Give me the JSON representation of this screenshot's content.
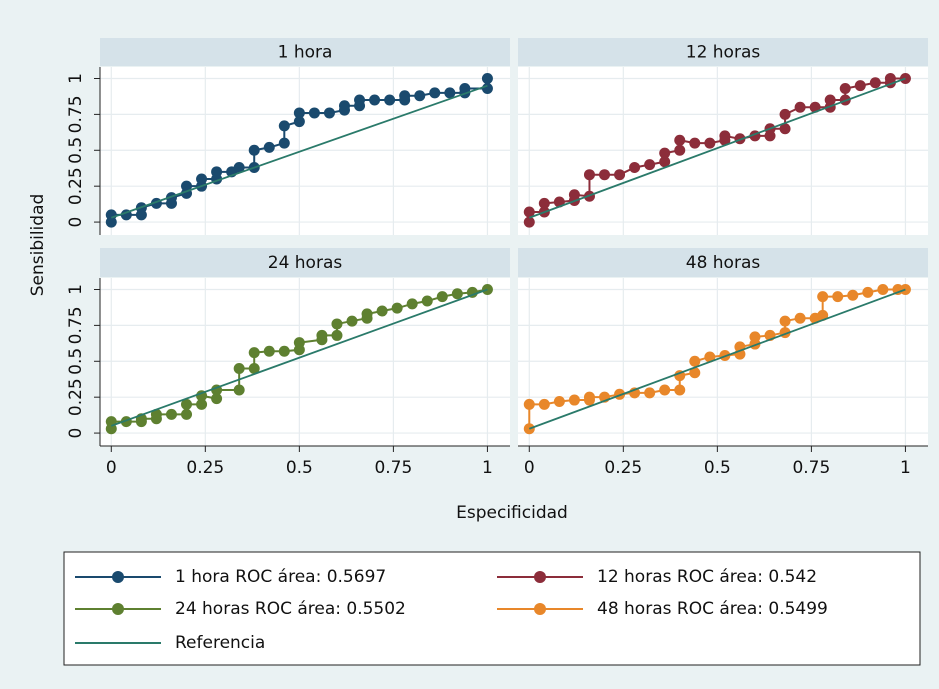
{
  "xlabel": "Especificidad",
  "ylabel": "Sensibilidad",
  "reference_legend": {
    "name": "Referencia",
    "color": "#2a7a6a"
  },
  "chart_data": [
    {
      "type": "line",
      "title": "1 hora",
      "xlim": [
        -0.03,
        1.06
      ],
      "ylim": [
        -0.09,
        1.08
      ],
      "xticks": [
        0,
        0.25,
        0.5,
        0.75,
        1
      ],
      "yticks": [
        0,
        0.25,
        0.5,
        0.75,
        1
      ],
      "grid": true,
      "x": [
        0,
        0,
        0.04,
        0.08,
        0.08,
        0.12,
        0.16,
        0.16,
        0.2,
        0.2,
        0.24,
        0.24,
        0.28,
        0.28,
        0.32,
        0.34,
        0.38,
        0.38,
        0.42,
        0.46,
        0.46,
        0.5,
        0.5,
        0.54,
        0.58,
        0.62,
        0.62,
        0.66,
        0.66,
        0.7,
        0.74,
        0.78,
        0.78,
        0.82,
        0.86,
        0.9,
        0.94,
        0.94,
        1,
        1
      ],
      "series": [
        {
          "name": "1 hora ROC área: 0.5697",
          "color": "#1a4a6e",
          "values": [
            0,
            0.05,
            0.05,
            0.05,
            0.1,
            0.13,
            0.13,
            0.17,
            0.2,
            0.25,
            0.25,
            0.3,
            0.3,
            0.35,
            0.35,
            0.38,
            0.38,
            0.5,
            0.52,
            0.55,
            0.67,
            0.7,
            0.76,
            0.76,
            0.76,
            0.78,
            0.81,
            0.81,
            0.85,
            0.85,
            0.85,
            0.85,
            0.88,
            0.88,
            0.9,
            0.9,
            0.9,
            0.93,
            0.93,
            1
          ]
        }
      ],
      "reference": {
        "x": [
          0,
          1
        ],
        "values": [
          0.03,
          0.95
        ]
      }
    },
    {
      "type": "line",
      "title": "12 horas",
      "xlim": [
        -0.03,
        1.06
      ],
      "ylim": [
        -0.09,
        1.08
      ],
      "xticks": [
        0,
        0.25,
        0.5,
        0.75,
        1
      ],
      "yticks": [
        0,
        0.25,
        0.5,
        0.75,
        1
      ],
      "grid": true,
      "x": [
        0,
        0,
        0.04,
        0.04,
        0.08,
        0.12,
        0.12,
        0.16,
        0.16,
        0.2,
        0.24,
        0.28,
        0.32,
        0.36,
        0.36,
        0.4,
        0.4,
        0.44,
        0.48,
        0.52,
        0.52,
        0.56,
        0.6,
        0.64,
        0.64,
        0.68,
        0.68,
        0.72,
        0.76,
        0.8,
        0.8,
        0.84,
        0.84,
        0.88,
        0.92,
        0.96,
        0.96,
        1
      ],
      "series": [
        {
          "name": "12 horas ROC área: 0.542",
          "color": "#8c2d3a",
          "values": [
            0,
            0.07,
            0.07,
            0.13,
            0.14,
            0.15,
            0.19,
            0.18,
            0.33,
            0.33,
            0.33,
            0.38,
            0.4,
            0.42,
            0.48,
            0.5,
            0.57,
            0.55,
            0.55,
            0.57,
            0.6,
            0.58,
            0.6,
            0.6,
            0.65,
            0.65,
            0.75,
            0.8,
            0.8,
            0.8,
            0.85,
            0.85,
            0.93,
            0.95,
            0.97,
            0.97,
            1,
            1
          ]
        }
      ],
      "reference": {
        "x": [
          0,
          1
        ],
        "values": [
          0.03,
          1
        ]
      }
    },
    {
      "type": "line",
      "title": "24 horas",
      "xlim": [
        -0.03,
        1.06
      ],
      "ylim": [
        -0.09,
        1.08
      ],
      "xticks": [
        0,
        0.25,
        0.5,
        0.75,
        1
      ],
      "yticks": [
        0,
        0.25,
        0.5,
        0.75,
        1
      ],
      "grid": true,
      "x": [
        0,
        0,
        0.04,
        0.08,
        0.08,
        0.12,
        0.12,
        0.16,
        0.2,
        0.2,
        0.24,
        0.24,
        0.28,
        0.28,
        0.34,
        0.34,
        0.38,
        0.38,
        0.42,
        0.46,
        0.5,
        0.5,
        0.56,
        0.56,
        0.6,
        0.6,
        0.64,
        0.68,
        0.68,
        0.72,
        0.76,
        0.8,
        0.84,
        0.88,
        0.92,
        0.96,
        1
      ],
      "series": [
        {
          "name": "24 horas ROC área: 0.5502",
          "color": "#5e8030",
          "values": [
            0.03,
            0.08,
            0.08,
            0.08,
            0.1,
            0.1,
            0.13,
            0.13,
            0.13,
            0.2,
            0.2,
            0.26,
            0.24,
            0.3,
            0.3,
            0.45,
            0.45,
            0.56,
            0.57,
            0.57,
            0.58,
            0.63,
            0.65,
            0.68,
            0.68,
            0.76,
            0.78,
            0.8,
            0.83,
            0.85,
            0.87,
            0.9,
            0.92,
            0.95,
            0.97,
            0.98,
            1
          ]
        }
      ],
      "reference": {
        "x": [
          0,
          1
        ],
        "values": [
          0.05,
          1
        ]
      }
    },
    {
      "type": "line",
      "title": "48 horas",
      "xlim": [
        -0.03,
        1.06
      ],
      "ylim": [
        -0.09,
        1.08
      ],
      "xticks": [
        0,
        0.25,
        0.5,
        0.75,
        1
      ],
      "yticks": [
        0,
        0.25,
        0.5,
        0.75,
        1
      ],
      "grid": true,
      "x": [
        0,
        0,
        0.04,
        0.08,
        0.12,
        0.16,
        0.16,
        0.2,
        0.24,
        0.28,
        0.32,
        0.36,
        0.4,
        0.4,
        0.44,
        0.44,
        0.48,
        0.52,
        0.56,
        0.56,
        0.6,
        0.6,
        0.64,
        0.68,
        0.68,
        0.72,
        0.76,
        0.78,
        0.78,
        0.82,
        0.86,
        0.9,
        0.94,
        0.98,
        1
      ],
      "series": [
        {
          "name": "48 horas ROC área: 0.5499",
          "color": "#e8872a",
          "values": [
            0.03,
            0.2,
            0.2,
            0.22,
            0.23,
            0.23,
            0.25,
            0.25,
            0.27,
            0.28,
            0.28,
            0.3,
            0.3,
            0.4,
            0.42,
            0.5,
            0.53,
            0.54,
            0.55,
            0.6,
            0.62,
            0.67,
            0.68,
            0.7,
            0.78,
            0.8,
            0.8,
            0.82,
            0.95,
            0.95,
            0.96,
            0.98,
            1,
            1,
            1
          ]
        }
      ],
      "reference": {
        "x": [
          0,
          1
        ],
        "values": [
          0.03,
          1
        ]
      }
    }
  ]
}
